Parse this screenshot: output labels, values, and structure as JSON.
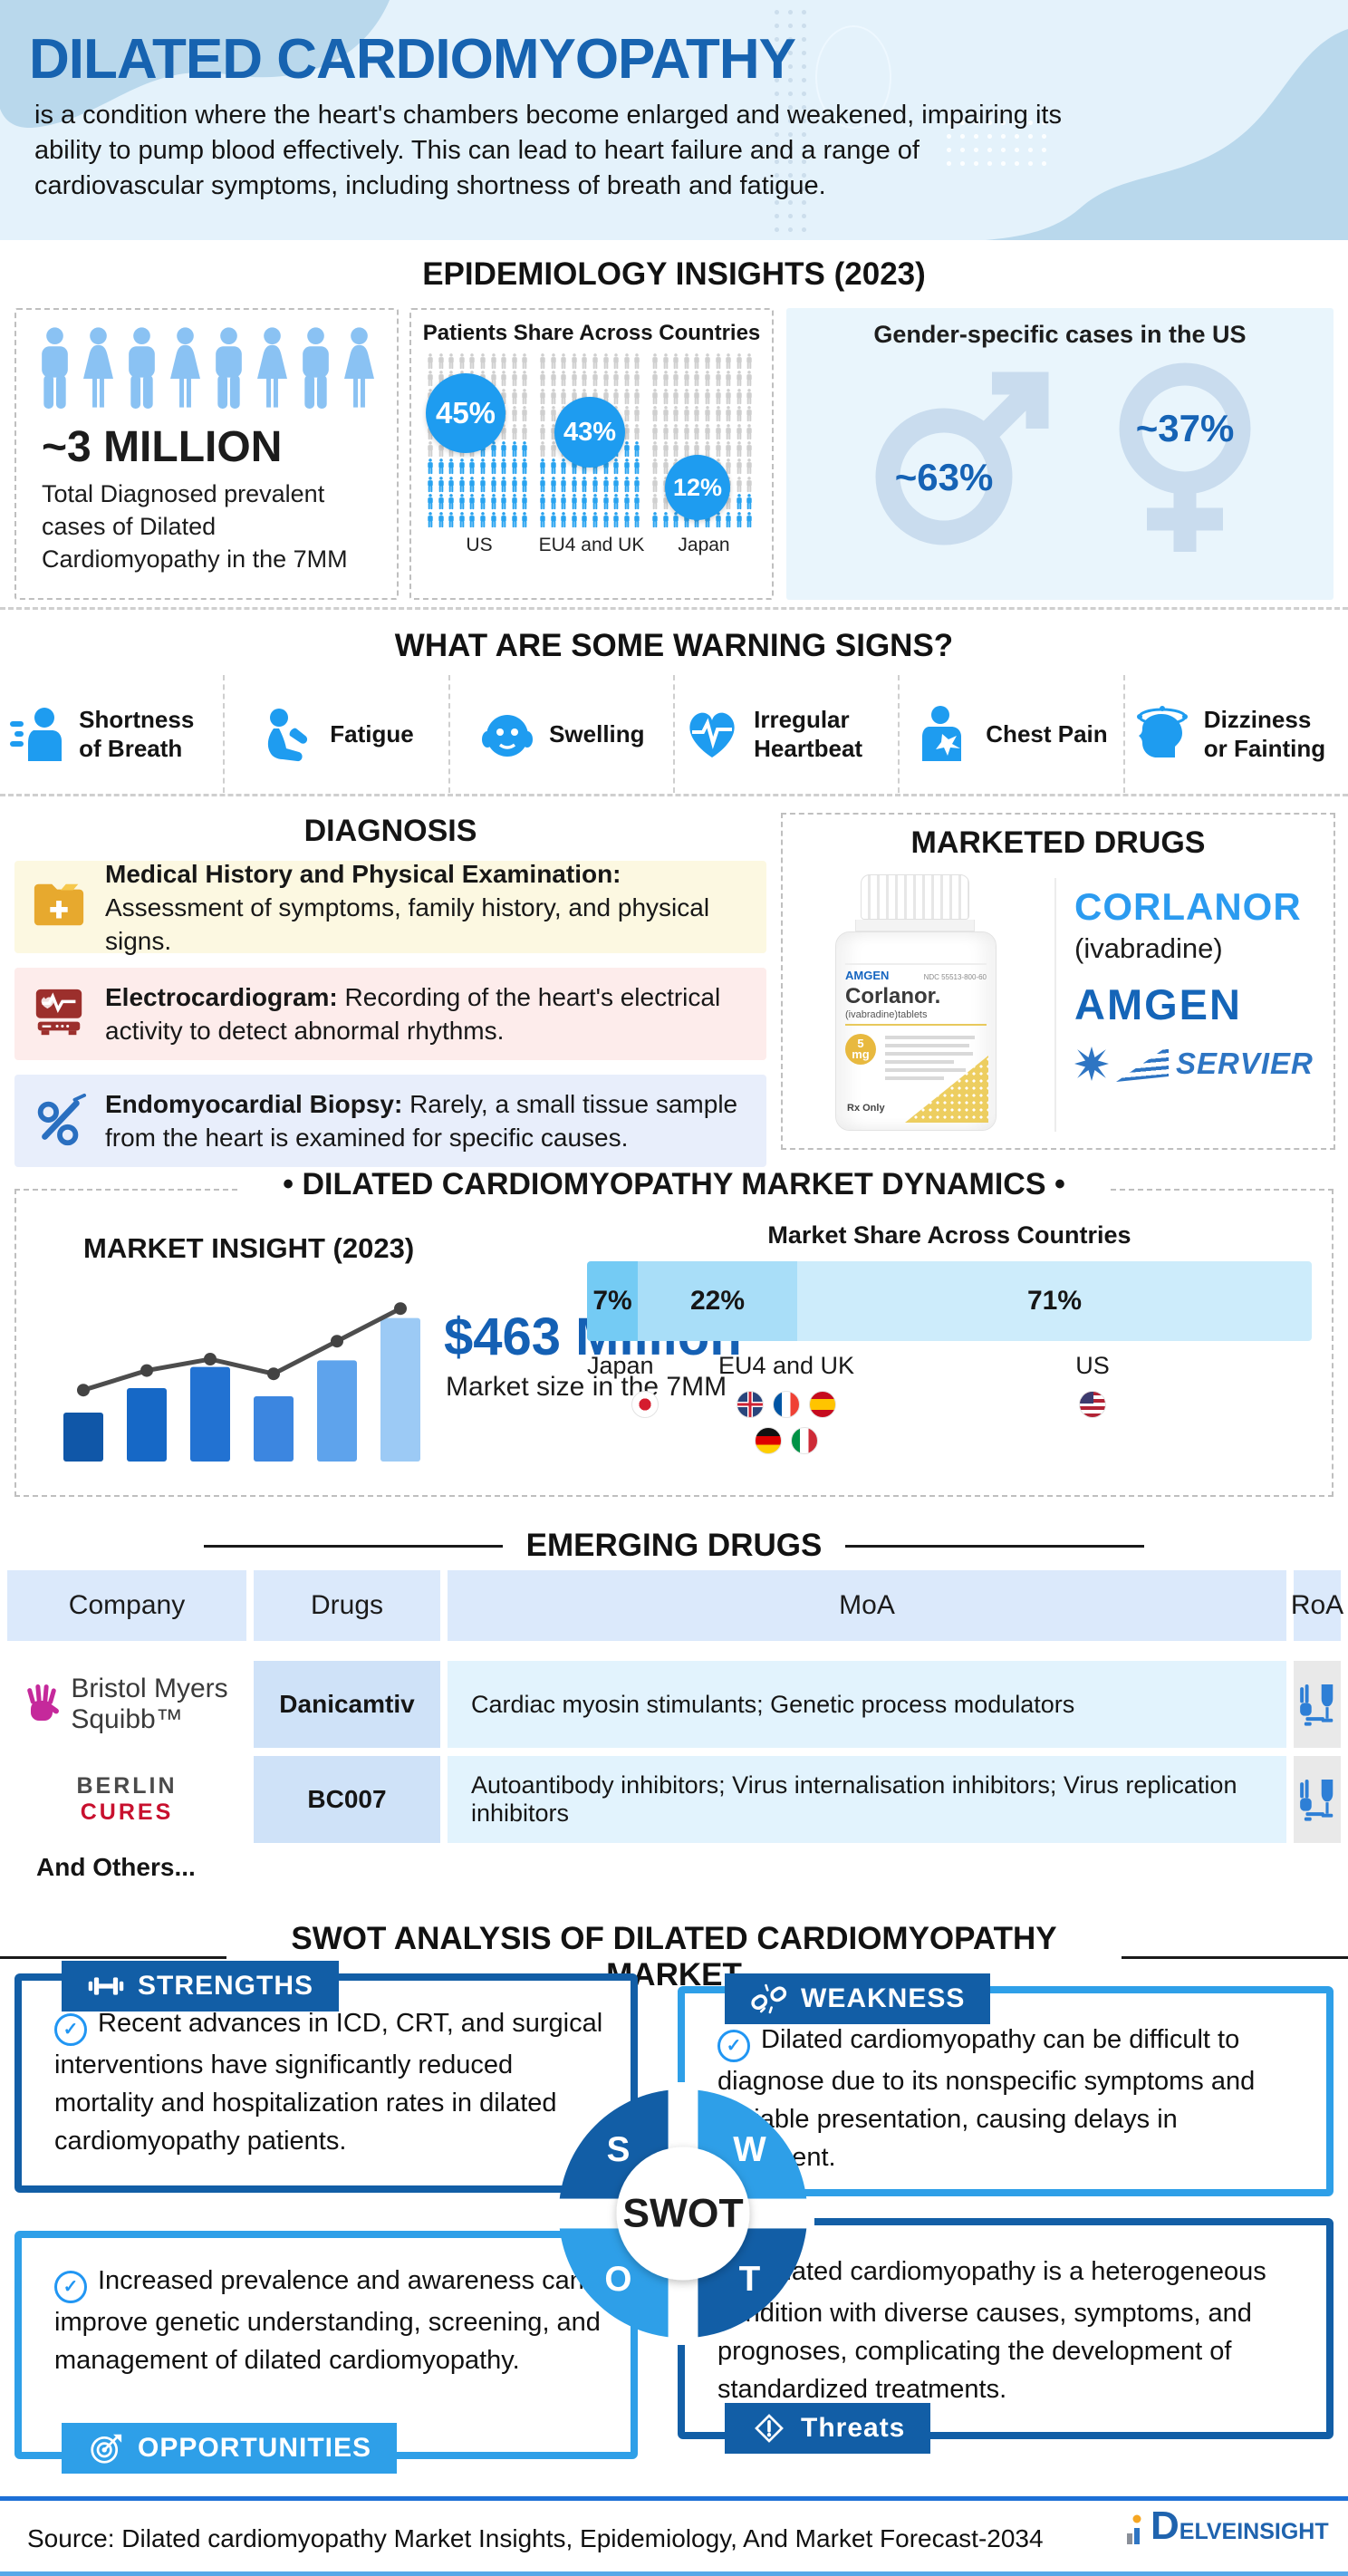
{
  "palette": {
    "title_blue": "#1763b0",
    "dark_blue": "#125ea6",
    "bright_blue": "#2e9fe8",
    "icon_blue": "#1e9cf0",
    "accent_blue": "#1d6fd6",
    "pictogram_blue": "#29a3ef",
    "pictogram_gray": "#cfcfcf"
  },
  "header": {
    "title": "DILATED CARDIOMYOPATHY",
    "description": "is a condition where the heart's chambers become enlarged and weakened, impairing its ability to pump blood effectively. This can lead to heart failure and a range of cardiovascular symptoms, including shortness of breath and fatigue."
  },
  "epidemiology": {
    "heading": "EPIDEMIOLOGY INSIGHTS (2023)",
    "total": {
      "value": "~3 MILLION",
      "label": "Total Diagnosed prevalent cases of Dilated Cardiomyopathy in the 7MM"
    },
    "patients_share": {
      "title": "Patients Share Across Countries",
      "countries": [
        {
          "name": "US",
          "pct": "45%",
          "filled": 45
        },
        {
          "name": "EU4 and UK",
          "pct": "43%",
          "filled": 43
        },
        {
          "name": "Japan",
          "pct": "12%",
          "filled": 12
        }
      ]
    },
    "gender": {
      "title": "Gender-specific cases in the US",
      "male": "~63%",
      "female": "~37%"
    }
  },
  "warning": {
    "heading": "WHAT ARE SOME WARNING SIGNS?",
    "signs": [
      {
        "label": "Shortness of Breath",
        "icon": "breath-icon"
      },
      {
        "label": "Fatigue",
        "icon": "fatigue-icon"
      },
      {
        "label": "Swelling",
        "icon": "swelling-icon"
      },
      {
        "label": "Irregular Heartbeat",
        "icon": "heartbeat-icon"
      },
      {
        "label": "Chest Pain",
        "icon": "chest-pain-icon"
      },
      {
        "label": "Dizziness or Fainting",
        "icon": "dizziness-icon"
      }
    ]
  },
  "diagnosis": {
    "heading": "DIAGNOSIS",
    "items": [
      {
        "title": "Medical History and Physical Examination:",
        "text": "Assessment of symptoms, family history, and physical signs.",
        "icon": "medical-folder-icon"
      },
      {
        "title": "Electrocardiogram:",
        "text": "Recording of the heart's electrical activity to detect abnormal rhythms.",
        "icon": "ecg-machine-icon"
      },
      {
        "title": "Endomyocardial Biopsy:",
        "text": "Rarely, a small tissue sample from the heart is examined for specific causes.",
        "icon": "biopsy-needle-icon"
      }
    ]
  },
  "marketed": {
    "heading": "MARKETED DRUGS",
    "drug": "CORLANOR",
    "generic": "(ivabradine)",
    "amgen": "AMGEN",
    "servier": "SERVIER",
    "bottle": {
      "brand": "AMGEN",
      "ndc": "NDC 55513-800-60",
      "name": "Corlanor.",
      "sub": "(ivabradine)tablets",
      "dose": "5",
      "dose_unit": "mg",
      "rx": "Rx Only"
    }
  },
  "market": {
    "heading_decorated": "•  DILATED CARDIOMYOPATHY MARKET DYNAMICS  •",
    "insight_title": "MARKET INSIGHT (2023)",
    "size": "$463 Million",
    "size_label": "Market size in the 7MM",
    "share_title": "Market Share Across Countries",
    "shares": [
      {
        "name": "Japan",
        "pct": "7%",
        "value": 7
      },
      {
        "name": "EU4 and UK",
        "pct": "22%",
        "value": 22
      },
      {
        "name": "US",
        "pct": "71%",
        "value": 71
      }
    ]
  },
  "chart_data": [
    {
      "id": "patients_share",
      "type": "bar",
      "title": "Patients Share Across Countries",
      "categories": [
        "US",
        "EU4 and UK",
        "Japan"
      ],
      "values": [
        45,
        43,
        12
      ],
      "unit": "%",
      "note": "pictograph grids of 100 person icons per country, filled from bottom"
    },
    {
      "id": "gender_share",
      "type": "bar",
      "title": "Gender-specific cases in the US",
      "categories": [
        "Male",
        "Female"
      ],
      "values": [
        63,
        37
      ],
      "unit": "%",
      "note": "approximate values shown with ~ prefix inside male and female symbols"
    },
    {
      "id": "market_growth",
      "type": "bar",
      "title": "MARKET INSIGHT (2023)",
      "values": [
        30,
        45,
        58,
        40,
        62,
        88
      ],
      "line": [
        36,
        48,
        55,
        46,
        66,
        86
      ],
      "colors": [
        "#1057a8",
        "#1668c6",
        "#2272d2",
        "#3c86e0",
        "#5ea3ec",
        "#9ccaf5"
      ],
      "ylim": [
        0,
        100
      ],
      "note": "decorative growth bars with trend line; labeled value is $463 Million market size in the 7MM"
    },
    {
      "id": "market_share",
      "type": "bar",
      "title": "Market Share Across Countries",
      "categories": [
        "Japan",
        "EU4 and UK",
        "US"
      ],
      "values": [
        7,
        22,
        71
      ],
      "unit": "%",
      "colors": [
        "#74cbf4",
        "#a9def8",
        "#cdecfb"
      ]
    }
  ],
  "emerging": {
    "heading": "EMERGING DRUGS",
    "columns": [
      "Company",
      "Drugs",
      "MoA",
      "RoA"
    ],
    "rows": [
      {
        "company": "Bristol Myers Squibb",
        "logo_lines": [
          "Bristol Myers",
          "Squibb™"
        ],
        "drug": "Danicamtiv",
        "moa": "Cardiac myosin stimulants; Genetic process modulators"
      },
      {
        "company": "BERLIN CURES",
        "logo_lines": [
          "BERLIN",
          "CURES"
        ],
        "drug": "BC007",
        "moa": "Autoantibody inhibitors; Virus internalisation inhibitors; Virus replication inhibitors"
      }
    ],
    "footnote": "And Others..."
  },
  "swot": {
    "heading": "SWOT ANALYSIS OF DILATED CARDIOMYOPATHY MARKET",
    "center": "SWOT",
    "quadrants": {
      "strengths": {
        "label": "STRENGTHS",
        "letter": "S",
        "text": "Recent advances in ICD, CRT, and surgical interventions have significantly reduced mortality and hospitalization rates in dilated cardiomyopathy patients."
      },
      "weakness": {
        "label": "WEAKNESS",
        "letter": "W",
        "text": "Dilated cardiomyopathy can be difficult to diagnose due to its nonspecific symptoms and variable presentation, causing delays in treatment."
      },
      "opportunities": {
        "label": "OPPORTUNITIES",
        "letter": "O",
        "text": "Increased prevalence and awareness can improve genetic understanding, screening, and management of dilated cardiomyopathy."
      },
      "threats": {
        "label": "Threats",
        "letter": "T",
        "text": "Dilated cardiomyopathy is a heterogeneous condition with diverse causes, symptoms, and prognoses, complicating the development of standardized treatments."
      }
    }
  },
  "footer": {
    "source": "Source: Dilated cardiomyopathy Market Insights, Epidemiology, And Market Forecast-2034",
    "brand": "DELVEINSIGHT"
  }
}
